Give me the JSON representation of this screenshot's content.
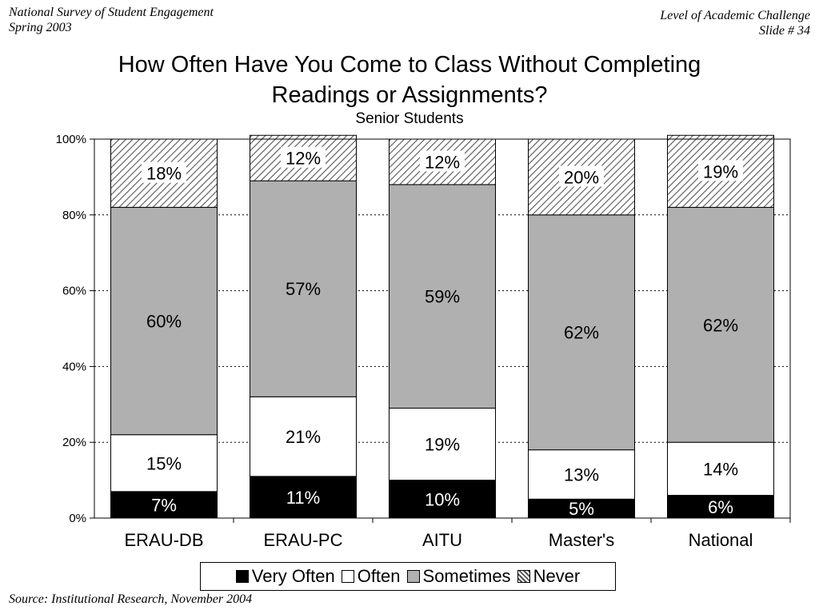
{
  "header": {
    "left_line1": "National Survey of Student Engagement",
    "left_line2": "Spring 2003",
    "right_line1": "Level of Academic Challenge",
    "right_line2": "Slide # 34"
  },
  "source": "Source: Institutional Research, November 2004",
  "colors": {
    "very_often": "#000000",
    "often": "#ffffff",
    "sometimes": "#b0b0b0",
    "never": "hatched"
  },
  "chart_data": {
    "type": "bar",
    "stacked": true,
    "title": "How Often Have You Come to Class Without Completing Readings or Assignments?",
    "title_line1": "How Often Have You Come to Class Without Completing",
    "title_line2": "Readings or Assignments?",
    "subtitle": "Senior Students",
    "categories": [
      "ERAU-DB",
      "ERAU-PC",
      "AITU",
      "Master's",
      "National"
    ],
    "ylim": [
      0,
      100
    ],
    "yticks": [
      "0%",
      "20%",
      "40%",
      "60%",
      "80%",
      "100%"
    ],
    "grid": true,
    "legend_position": "bottom",
    "series": [
      {
        "name": "Very Often",
        "values": [
          7,
          11,
          10,
          5,
          6
        ],
        "labels": [
          "7%",
          "11%",
          "10%",
          "5%",
          "6%"
        ]
      },
      {
        "name": "Often",
        "values": [
          15,
          21,
          19,
          13,
          14
        ],
        "labels": [
          "15%",
          "21%",
          "19%",
          "13%",
          "14%"
        ]
      },
      {
        "name": "Sometimes",
        "values": [
          60,
          57,
          59,
          62,
          62
        ],
        "labels": [
          "60%",
          "57%",
          "59%",
          "62%",
          "62%"
        ]
      },
      {
        "name": "Never",
        "values": [
          18,
          12,
          12,
          20,
          19
        ],
        "labels": [
          "18%",
          "12%",
          "12%",
          "20%",
          "19%"
        ]
      }
    ]
  }
}
